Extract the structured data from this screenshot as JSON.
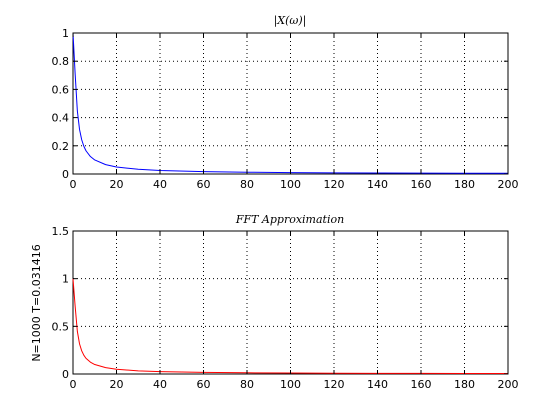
{
  "chart_data": [
    {
      "type": "line",
      "title": "|X(ω)|",
      "xlabel": "",
      "ylabel": "",
      "xlim": [
        0,
        200
      ],
      "ylim": [
        0,
        1
      ],
      "xticks": [
        0,
        20,
        40,
        60,
        80,
        100,
        120,
        140,
        160,
        180,
        200
      ],
      "yticks": [
        0,
        0.2,
        0.4,
        0.6,
        0.8,
        1
      ],
      "ytick_labels": [
        "0",
        "0.2",
        "0.4",
        "0.6",
        "0.8",
        "1"
      ],
      "grid": true,
      "series": [
        {
          "color": "#0000ff",
          "x": [
            0,
            1,
            2,
            3,
            4,
            5,
            6,
            8,
            10,
            15,
            20,
            30,
            40,
            60,
            80,
            100,
            120,
            140,
            160,
            180,
            200
          ],
          "y": [
            1.0,
            0.707,
            0.447,
            0.316,
            0.243,
            0.196,
            0.164,
            0.124,
            0.0995,
            0.0665,
            0.05,
            0.0333,
            0.025,
            0.0167,
            0.0125,
            0.01,
            0.0083,
            0.0071,
            0.0063,
            0.0056,
            0.005
          ]
        }
      ]
    },
    {
      "type": "line",
      "title": "FFT Approximation",
      "xlabel": "",
      "ylabel": "N=1000  T=0.031416",
      "xlim": [
        0,
        200
      ],
      "ylim": [
        0,
        1.5
      ],
      "xticks": [
        0,
        20,
        40,
        60,
        80,
        100,
        120,
        140,
        160,
        180,
        200
      ],
      "yticks": [
        0,
        0.5,
        1,
        1.5
      ],
      "ytick_labels": [
        "0",
        "0.5",
        "1",
        "1.5"
      ],
      "grid": true,
      "series": [
        {
          "color": "#ff0000",
          "x": [
            0,
            1,
            2,
            3,
            4,
            5,
            6,
            8,
            10,
            15,
            20,
            30,
            40,
            60,
            80,
            100,
            120,
            140,
            160,
            180,
            200
          ],
          "y": [
            1.0,
            0.707,
            0.447,
            0.316,
            0.243,
            0.196,
            0.164,
            0.124,
            0.0995,
            0.0665,
            0.05,
            0.0333,
            0.025,
            0.0167,
            0.0125,
            0.01,
            0.0083,
            0.0071,
            0.0063,
            0.0056,
            0.005
          ]
        }
      ]
    }
  ]
}
